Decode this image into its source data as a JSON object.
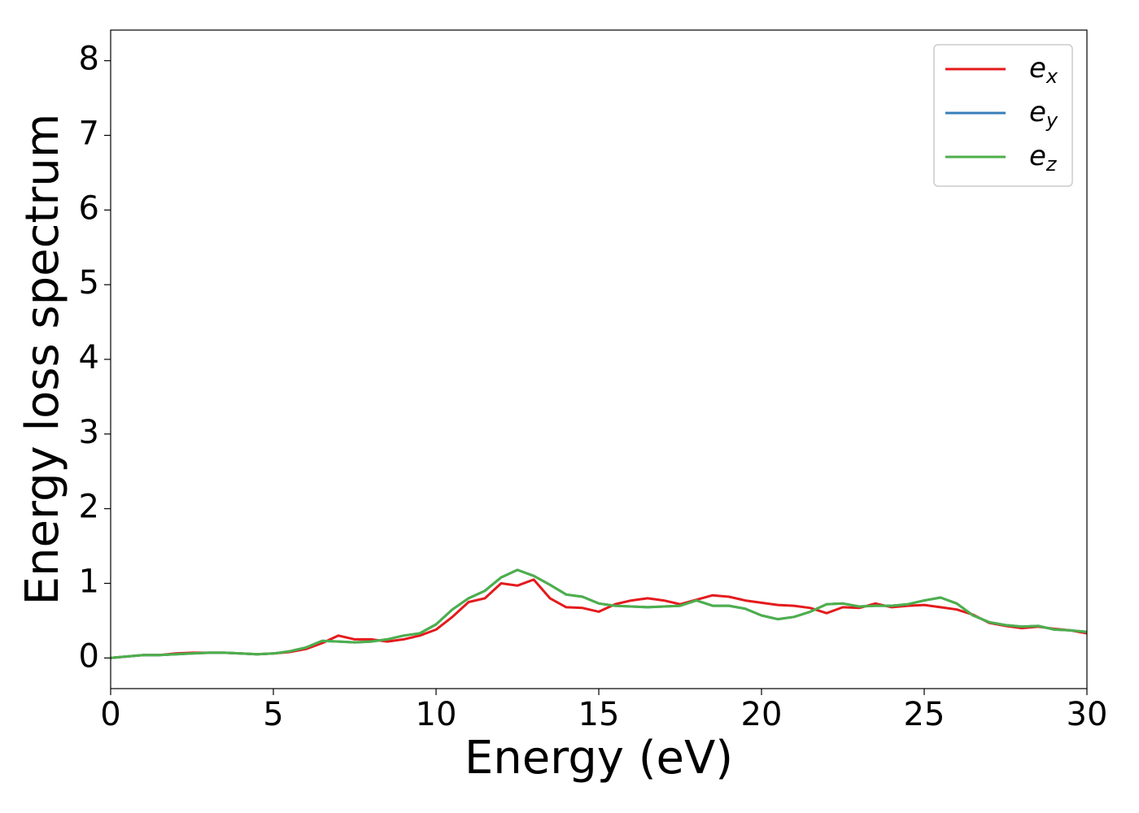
{
  "chart_data": {
    "type": "line",
    "xlabel": "Energy (eV)",
    "ylabel": "Energy loss spectrum",
    "x": [
      0,
      0.5,
      1,
      1.5,
      2,
      2.5,
      3,
      3.5,
      4,
      4.5,
      5,
      5.5,
      6,
      6.5,
      7,
      7.5,
      8,
      8.5,
      9,
      9.5,
      10,
      10.5,
      11,
      11.5,
      12,
      12.5,
      13,
      13.5,
      14,
      14.5,
      15,
      15.5,
      16,
      16.5,
      17,
      17.5,
      18,
      18.5,
      19,
      19.5,
      20,
      20.5,
      21,
      21.5,
      22,
      22.5,
      23,
      23.5,
      24,
      24.5,
      25,
      25.5,
      26,
      26.5,
      27,
      27.5,
      28,
      28.5,
      29,
      29.5,
      30
    ],
    "series": [
      {
        "name": "ex",
        "color": "#e41a1c",
        "values": [
          0,
          0.02,
          0.04,
          0.04,
          0.06,
          0.07,
          0.07,
          0.07,
          0.06,
          0.05,
          0.06,
          0.08,
          0.12,
          0.2,
          0.3,
          0.25,
          0.25,
          0.22,
          0.25,
          0.3,
          0.38,
          0.55,
          0.75,
          0.8,
          1.0,
          0.97,
          1.05,
          0.8,
          0.68,
          0.67,
          0.62,
          0.72,
          0.77,
          0.8,
          0.77,
          0.72,
          0.78,
          0.84,
          0.82,
          0.77,
          0.74,
          0.71,
          0.7,
          0.67,
          0.6,
          0.68,
          0.67,
          0.73,
          0.68,
          0.7,
          0.71,
          0.68,
          0.65,
          0.58,
          0.47,
          0.43,
          0.4,
          0.42,
          0.39,
          0.37,
          0.33
        ]
      },
      {
        "name": "ey",
        "color": "#377eb8",
        "values": [
          0,
          0.02,
          0.04,
          0.04,
          0.05,
          0.06,
          0.07,
          0.07,
          0.06,
          0.05,
          0.06,
          0.09,
          0.14,
          0.23,
          0.22,
          0.21,
          0.22,
          0.25,
          0.3,
          0.33,
          0.45,
          0.65,
          0.8,
          0.9,
          1.08,
          1.18,
          1.1,
          0.98,
          0.85,
          0.82,
          0.73,
          0.7,
          0.69,
          0.68,
          0.69,
          0.7,
          0.77,
          0.7,
          0.7,
          0.66,
          0.57,
          0.52,
          0.55,
          0.62,
          0.72,
          0.73,
          0.69,
          0.7,
          0.7,
          0.72,
          0.77,
          0.81,
          0.73,
          0.57,
          0.48,
          0.44,
          0.42,
          0.43,
          0.38,
          0.37,
          0.35
        ]
      },
      {
        "name": "ez",
        "color": "#4daf4a",
        "values": [
          0,
          0.02,
          0.04,
          0.04,
          0.05,
          0.06,
          0.07,
          0.07,
          0.06,
          0.05,
          0.06,
          0.09,
          0.14,
          0.23,
          0.22,
          0.21,
          0.22,
          0.25,
          0.3,
          0.33,
          0.45,
          0.65,
          0.8,
          0.9,
          1.08,
          1.18,
          1.1,
          0.98,
          0.85,
          0.82,
          0.73,
          0.7,
          0.69,
          0.68,
          0.69,
          0.7,
          0.77,
          0.7,
          0.7,
          0.66,
          0.57,
          0.52,
          0.55,
          0.62,
          0.72,
          0.73,
          0.69,
          0.7,
          0.7,
          0.72,
          0.77,
          0.81,
          0.73,
          0.57,
          0.48,
          0.44,
          0.42,
          0.43,
          0.38,
          0.37,
          0.35
        ]
      }
    ],
    "xlim": [
      0,
      30
    ],
    "xticks": [
      0,
      5,
      10,
      15,
      20,
      25,
      30
    ],
    "ylim": [
      -0.41,
      8.41
    ],
    "yticks": [
      0,
      1,
      2,
      3,
      4,
      5,
      6,
      7,
      8
    ],
    "grid": false,
    "legend": "upper right"
  }
}
